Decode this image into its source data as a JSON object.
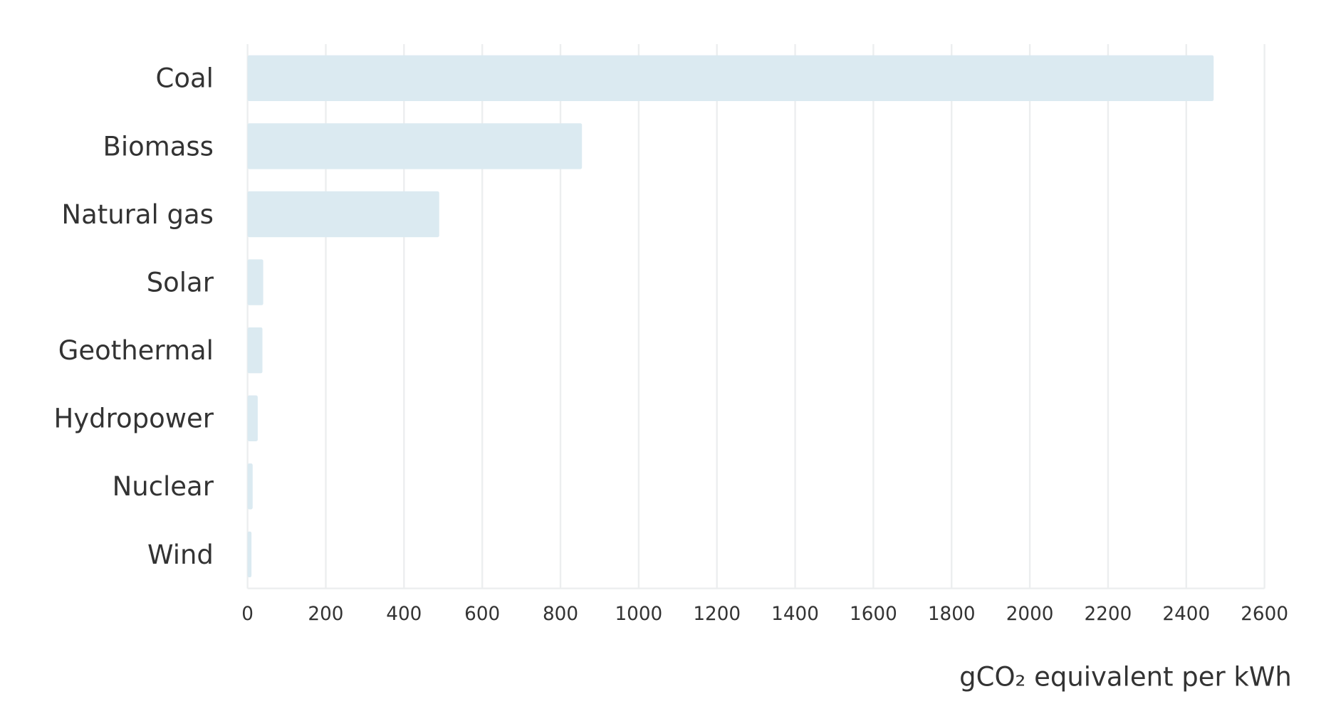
{
  "chart_data": {
    "type": "bar",
    "orientation": "horizontal",
    "x_label": "gCO₂ equivalent per kWh",
    "categories": [
      "Coal",
      "Biomass",
      "Natural gas",
      "Solar",
      "Geothermal",
      "Hydropower",
      "Nuclear",
      "Wind"
    ],
    "values": [
      2470,
      855,
      490,
      40,
      38,
      26,
      13,
      10
    ],
    "color": "#dbeaf1",
    "xlim": [
      0,
      2600
    ],
    "xticks": [
      0,
      200,
      400,
      600,
      800,
      1000,
      1200,
      1400,
      1600,
      1800,
      2000,
      2200,
      2400,
      2600
    ],
    "grid": true
  }
}
